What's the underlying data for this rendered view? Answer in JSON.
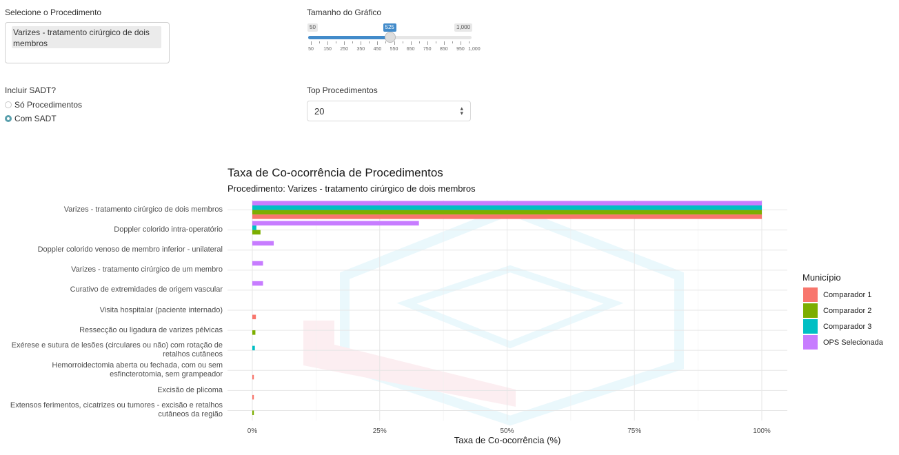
{
  "procedure_input": {
    "label": "Selecione o Procedimento",
    "selected": "Varizes - tratamento cirúrgico de dois membros"
  },
  "chart_size": {
    "label": "Tamanho do Gráfico",
    "min_label": "50",
    "max_label": "1,000",
    "current_label": "525",
    "value": 525,
    "min": 50,
    "max": 1000,
    "tick_labels": [
      "50",
      "150",
      "250",
      "350",
      "450",
      "550",
      "650",
      "750",
      "850",
      "950",
      "1,000"
    ]
  },
  "sadt": {
    "label": "Incluir SADT?",
    "options": [
      "Só Procedimentos",
      "Com SADT"
    ],
    "selected_index": 1
  },
  "top_procedures": {
    "label": "Top Procedimentos",
    "value": "20"
  },
  "chart_data": {
    "type": "bar",
    "orientation": "horizontal",
    "title": "Taxa de Co-ocorrência de Procedimentos",
    "subtitle": "Procedimento: Varizes - tratamento cirúrgico de dois membros",
    "xlabel": "Taxa de Co-ocorrência (%)",
    "ylabel": "",
    "xlim": [
      0,
      100
    ],
    "x_ticks": [
      "0%",
      "25%",
      "50%",
      "75%",
      "100%"
    ],
    "legend_title": "Município",
    "legend_position": "right",
    "grid": true,
    "categories": [
      "Varizes - tratamento cirúrgico de dois membros",
      "Doppler colorido intra-operatório",
      "Doppler colorido venoso de membro inferior - unilateral",
      "Varizes - tratamento cirúrgico de um membro",
      "Curativo de extremidades de origem vascular",
      "Visita hospitalar (paciente internado)",
      "Ressecção ou ligadura de varizes pélvicas",
      "Exérese e sutura de lesões (circulares ou não) com rotação de retalhos cutâneos",
      "Hemorroidectomia aberta ou fechada, com ou sem esfincterotomia, sem grampeador",
      "Excisão de plicoma",
      "Extensos ferimentos, cicatrizes ou tumores - excisão e retalhos cutâneos da região"
    ],
    "series": [
      {
        "name": "Comparador 1",
        "color": "#F8766D",
        "values": [
          100,
          0,
          0,
          0,
          0,
          0.7,
          0,
          0,
          0.3,
          0.3,
          0
        ]
      },
      {
        "name": "Comparador 2",
        "color": "#7CAE00",
        "values": [
          100,
          1.6,
          0,
          0,
          0,
          0,
          0.6,
          0,
          0,
          0,
          0.3
        ]
      },
      {
        "name": "Comparador 3",
        "color": "#00BFC4",
        "values": [
          100,
          0.8,
          0,
          0,
          0,
          0,
          0,
          0.5,
          0,
          0,
          0
        ]
      },
      {
        "name": "OPS Selecionada",
        "color": "#C77CFF",
        "values": [
          100,
          32.7,
          4.2,
          2.1,
          2.1,
          0,
          0,
          0,
          0,
          0,
          0
        ]
      }
    ]
  }
}
